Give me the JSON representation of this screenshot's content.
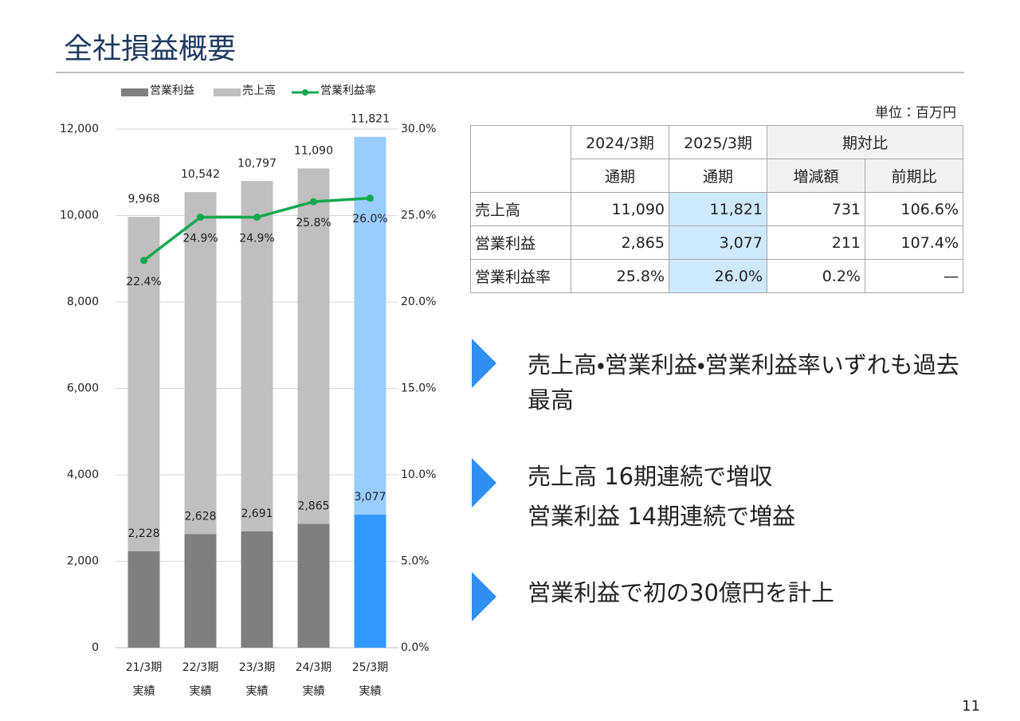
{
  "title": "全社損益概要",
  "page_number": "11",
  "chart_data": {
    "type": "combo",
    "categories": [
      [
        "21/3期",
        "実績"
      ],
      [
        "22/3期",
        "実績"
      ],
      [
        "23/3期",
        "実績"
      ],
      [
        "24/3期",
        "実績"
      ],
      [
        "25/3期",
        "実績"
      ]
    ],
    "series": [
      {
        "name": "営業利益",
        "type": "bar",
        "color": "#7f7f7f",
        "colors": [
          "#7f7f7f",
          "#7f7f7f",
          "#7f7f7f",
          "#7f7f7f",
          "#3399ff"
        ],
        "values": [
          2228,
          2628,
          2691,
          2865,
          3077
        ],
        "value_labels": [
          "2,228",
          "2,628",
          "2,691",
          "2,865",
          "3,077"
        ]
      },
      {
        "name": "売上高",
        "type": "bar",
        "color": "#bfbfbf",
        "colors": [
          "#bfbfbf",
          "#bfbfbf",
          "#bfbfbf",
          "#bfbfbf",
          "#99ccff"
        ],
        "values": [
          9968,
          10542,
          10797,
          11090,
          11821
        ],
        "value_labels": [
          "9,968",
          "10,542",
          "10,797",
          "11,090",
          "11,821"
        ]
      },
      {
        "name": "営業利益率",
        "type": "line",
        "axis": "y2",
        "color": "#13a84f",
        "values": [
          22.4,
          24.9,
          24.9,
          25.8,
          26.0
        ],
        "value_labels": [
          "22.4%",
          "24.9%",
          "24.9%",
          "25.8%",
          "26.0%"
        ]
      }
    ],
    "ylim": [
      0,
      12000
    ],
    "yticks": [
      0,
      {
        "value": 2000,
        "label": "2,000"
      },
      {
        "value": 4000,
        "label": "4,000"
      },
      {
        "value": 6000,
        "label": "6,000"
      },
      {
        "value": 8000,
        "label": "8,000"
      },
      {
        "value": 10000,
        "label": "10,000"
      },
      {
        "value": 12000,
        "label": "12,000"
      }
    ],
    "y2lim": [
      0,
      30
    ],
    "y2ticks": [
      {
        "value": 0,
        "label": "0.0%"
      },
      {
        "value": 5,
        "label": "5.0%"
      },
      {
        "value": 10,
        "label": "10.0%"
      },
      {
        "value": 15,
        "label": "15.0%"
      },
      {
        "value": 20,
        "label": "20.0%"
      },
      {
        "value": 25,
        "label": "25.0%"
      },
      {
        "value": 30,
        "label": "30.0%"
      }
    ],
    "grid": true,
    "legend": "top"
  },
  "table": {
    "unit": "単位：百万円",
    "header": [
      [
        "2024/3期",
        "2025/3期",
        "期対比"
      ],
      [
        "通期",
        "通期",
        "増減額",
        "前期比"
      ]
    ],
    "rows": [
      [
        "売上高",
        "11,090",
        "11,821",
        "731",
        "106.6%"
      ],
      [
        "営業利益",
        "2,865",
        "3,077",
        "211",
        "107.4%"
      ],
      [
        "営業利益率",
        "25.8%",
        "26.0%",
        "0.2%",
        "—"
      ]
    ]
  },
  "bullets": [
    [
      "売上高・営業利益・営業利益率いずれも過去最高"
    ],
    [
      "売上高 16期連続で増収",
      "営業利益 14期連続で増益"
    ],
    [
      "営業利益で初の30億円を計上"
    ]
  ]
}
